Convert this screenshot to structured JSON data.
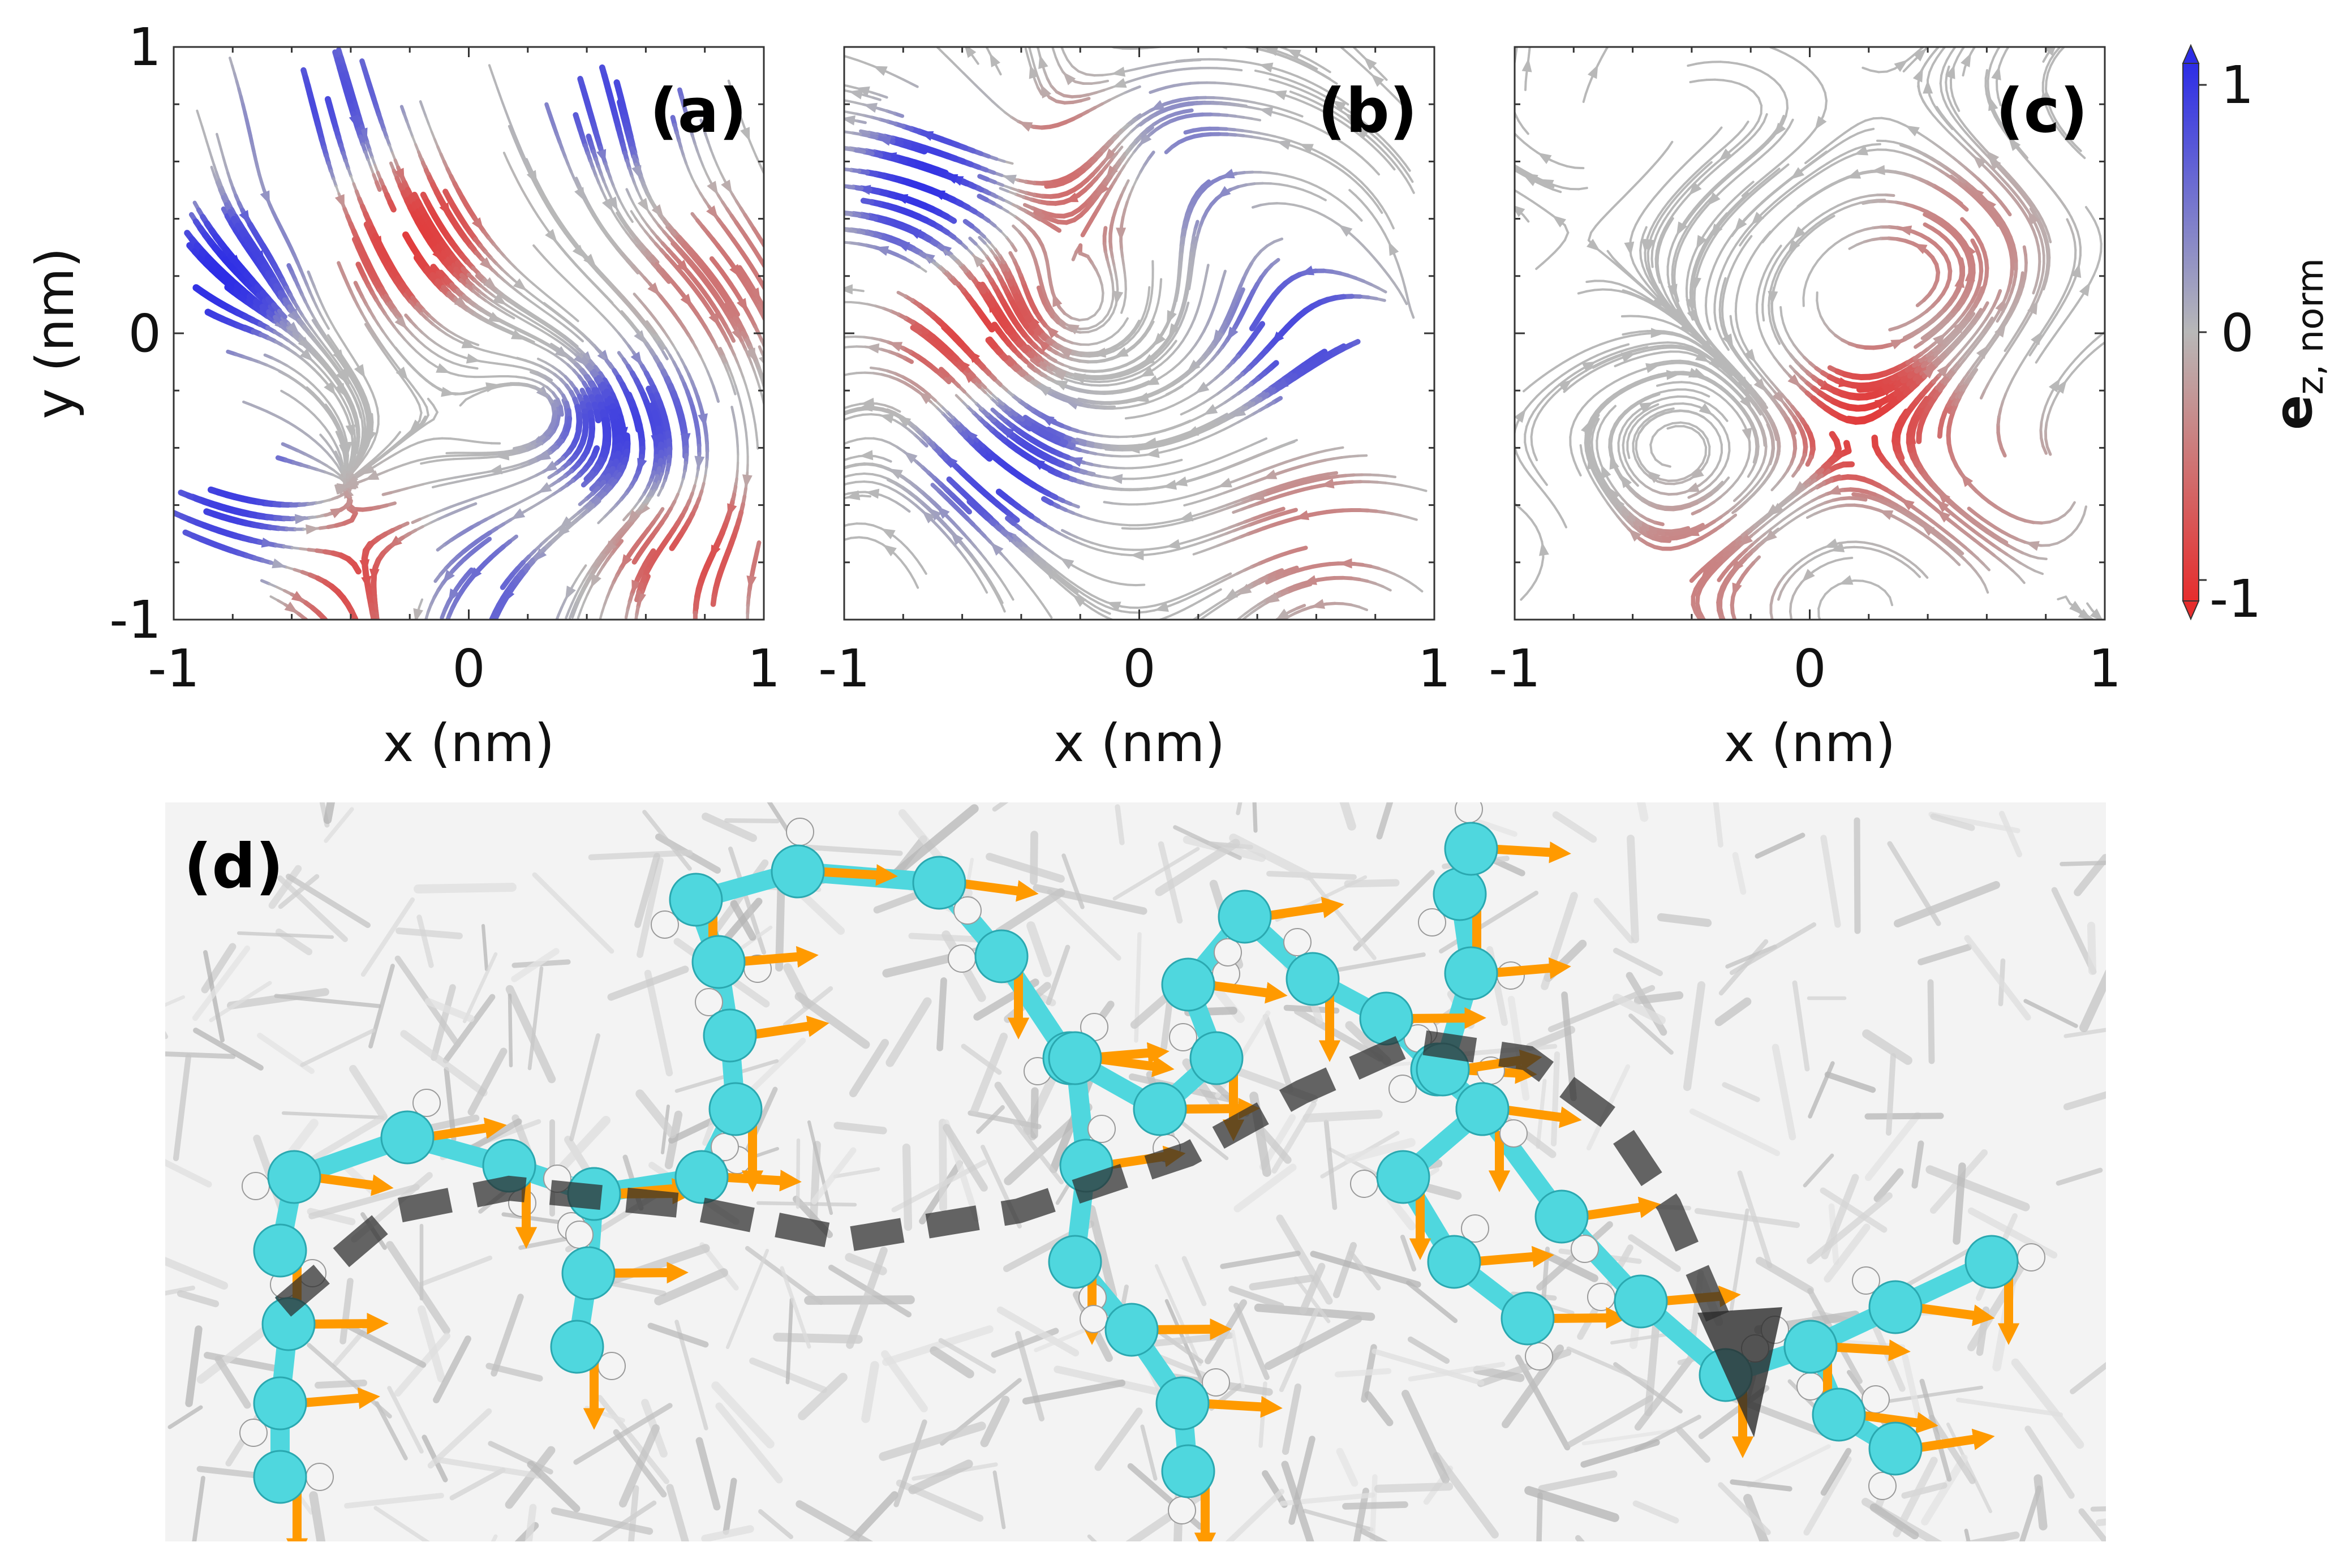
{
  "colors": {
    "positive": "#2d2de6",
    "neutral": "#b8b8b8",
    "negative": "#e62d2d",
    "carbon": "#4fd7de",
    "hydrogen": "#f4f4f4",
    "arrow": "#ff9a00",
    "path": "#2b2b2b",
    "background_molecules": "#cfcfcf"
  },
  "chart_data": [
    {
      "type": "streamplot",
      "panel_label": "(a)",
      "xlabel": "x (nm)",
      "ylabel": "y (nm)",
      "xlim": [
        -1,
        1
      ],
      "ylim": [
        -1,
        1
      ],
      "xticks": [
        "-1",
        "0",
        "1"
      ],
      "yticks": [
        "-1",
        "0",
        "1"
      ],
      "color_quantity": "e_z, norm",
      "ordering": "strong",
      "regions": [
        {
          "x": -0.85,
          "y": 0.2,
          "ez": 1.0
        },
        {
          "x": -0.8,
          "y": -0.6,
          "ez": 0.9
        },
        {
          "x": -0.5,
          "y": 0.8,
          "ez": 0.8
        },
        {
          "x": -0.2,
          "y": 0.35,
          "ez": -0.9
        },
        {
          "x": 0.5,
          "y": 0.85,
          "ez": 0.8
        },
        {
          "x": 0.55,
          "y": -0.35,
          "ez": 0.9
        },
        {
          "x": -0.35,
          "y": -0.85,
          "ez": -0.9
        },
        {
          "x": 0.75,
          "y": -0.75,
          "ez": -0.8
        },
        {
          "x": 0.85,
          "y": 0.2,
          "ez": -0.5
        },
        {
          "x": 0.0,
          "y": -0.9,
          "ez": 0.7
        }
      ]
    },
    {
      "type": "streamplot",
      "panel_label": "(b)",
      "xlabel": "x (nm)",
      "ylabel": "",
      "xlim": [
        -1,
        1
      ],
      "ylim": [
        -1,
        1
      ],
      "xticks": [
        "-1",
        "0",
        "1"
      ],
      "yticks": [],
      "color_quantity": "e_z, norm",
      "ordering": "medium",
      "regions": [
        {
          "x": -0.7,
          "y": 0.5,
          "ez": 1.0
        },
        {
          "x": -0.55,
          "y": 0.0,
          "ez": -0.9
        },
        {
          "x": -0.45,
          "y": -0.45,
          "ez": 0.9
        },
        {
          "x": -0.2,
          "y": 0.55,
          "ez": -0.7
        },
        {
          "x": 0.55,
          "y": 0.0,
          "ez": 0.8
        },
        {
          "x": 0.1,
          "y": 0.6,
          "ez": 0.5
        },
        {
          "x": 0.6,
          "y": -0.7,
          "ez": -0.4
        }
      ]
    },
    {
      "type": "streamplot",
      "panel_label": "(c)",
      "xlabel": "x (nm)",
      "ylabel": "",
      "xlim": [
        -1,
        1
      ],
      "ylim": [
        -1,
        1
      ],
      "xticks": [
        "-1",
        "0",
        "1"
      ],
      "yticks": [],
      "color_quantity": "e_z, norm",
      "ordering": "weak",
      "regions": [
        {
          "x": 0.2,
          "y": -0.3,
          "ez": -0.9
        },
        {
          "x": -0.4,
          "y": -0.85,
          "ez": -0.4
        },
        {
          "x": 0.5,
          "y": 0.3,
          "ez": -0.4
        },
        {
          "x": 0.6,
          "y": -0.55,
          "ez": -0.3
        }
      ]
    }
  ],
  "colorbar": {
    "label_main": "e",
    "label_sub": "z, norm",
    "min_label": "-1",
    "mid_label": "0",
    "max_label": "1",
    "range": [
      -1,
      1
    ]
  },
  "render": {
    "panel_label": "(d)"
  }
}
